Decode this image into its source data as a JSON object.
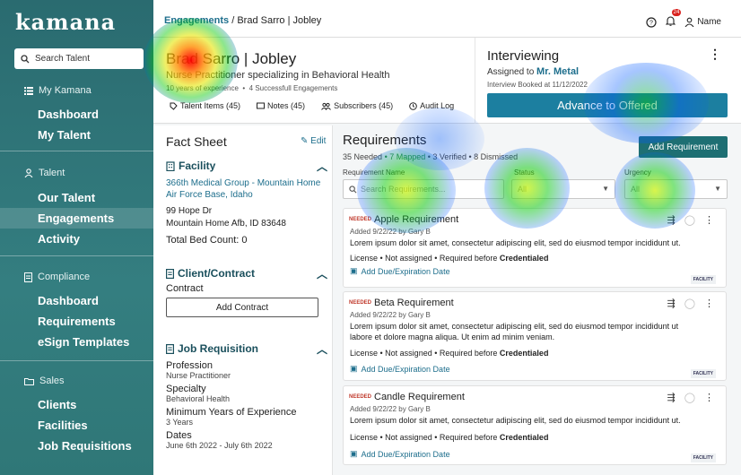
{
  "sidebar": {
    "logo": "kamana",
    "search_label": "Search Talent",
    "sections": [
      {
        "title": "My Kamana",
        "items": [
          "Dashboard",
          "My Talent"
        ]
      },
      {
        "title": "Talent",
        "items": [
          "Our Talent",
          "Engagements",
          "Activity"
        ]
      },
      {
        "title": "Compliance",
        "items": [
          "Dashboard",
          "Requirements",
          "eSign Templates"
        ]
      },
      {
        "title": "Sales",
        "items": [
          "Clients",
          "Facilities",
          "Job Requisitions"
        ]
      }
    ]
  },
  "topbar": {
    "breadcrumb_root": "Engagements",
    "breadcrumb_sep": "/",
    "breadcrumb_current": "Brad Sarro | Jobley",
    "notification_count": "24",
    "user_label": "Name"
  },
  "header": {
    "name": "Brad Sarro | Jobley",
    "subtitle": "Nurse Practitioner specializing in Behavioral Health",
    "experience": "10 years of experience",
    "engagements": "4 Successfull Engagements",
    "tabs": [
      "Talent Items (45)",
      "Notes (45)",
      "Subscribers (45)",
      "Audit Log"
    ],
    "status": "Interviewing",
    "assigned_prefix": "Assigned to",
    "assigned_name": "Mr. Metal",
    "booked": "Interview Booked at 11/12/2022",
    "advance_button": "Advance to Offered"
  },
  "fact_sheet": {
    "title": "Fact Sheet",
    "edit": "Edit",
    "facility": {
      "title": "Facility",
      "link": "366th Medical Group - Mountain Home Air Force Base, Idaho",
      "address1": "99 Hope Dr",
      "address2": "Mountain Home Afb, ID 83648",
      "bed_count": "Total Bed Count: 0"
    },
    "contract": {
      "title": "Client/Contract",
      "label": "Contract",
      "button": "Add Contract"
    },
    "job": {
      "title": "Job Requisition",
      "fields": [
        {
          "label": "Profession",
          "value": "Nurse Practitioner"
        },
        {
          "label": "Specialty",
          "value": "Behavioral Health"
        },
        {
          "label": "Minimum Years of Experience",
          "value": "3 Years"
        },
        {
          "label": "Dates",
          "value": "June 6th 2022 - July 6th 2022"
        }
      ]
    }
  },
  "requirements": {
    "title": "Requirements",
    "needed": "35 Needed",
    "mapped": "7 Mapped",
    "verified": "3 Verified",
    "dismissed": "8 Dismissed",
    "add_button": "Add Requirement",
    "filters": {
      "name_label": "Requirement Name",
      "name_placeholder": "Search Requirements...",
      "status_label": "Status",
      "status_value": "All",
      "urgency_label": "Urgency",
      "urgency_value": "All"
    },
    "cards": [
      {
        "badge": "NEEDED",
        "title": "Apple Requirement",
        "added": "Added 9/22/22 by Gary B",
        "desc": "Lorem ipsum dolor sit amet, consectetur adipiscing elit, sed do eiusmod tempor incididunt ut.",
        "license": "License • Not assigned • Required before",
        "license_bold": "Credentialed",
        "due": "Add Due/Expiration Date",
        "tag": "FACILITY"
      },
      {
        "badge": "NEEDED",
        "title": "Beta Requirement",
        "added": "Added 9/22/22 by Gary B",
        "desc": "Lorem ipsum dolor sit amet, consectetur adipiscing elit, sed do eiusmod tempor incididunt ut labore et dolore magna aliqua. Ut enim ad minim veniam.",
        "license": "License • Not assigned • Required before",
        "license_bold": "Credentialed",
        "due": "Add Due/Expiration Date",
        "tag": "FACILITY"
      },
      {
        "badge": "NEEDED",
        "title": "Candle Requirement",
        "added": "Added 9/22/22 by Gary B",
        "desc": "Lorem ipsum dolor sit amet, consectetur adipiscing elit, sed do eiusmod tempor incididunt ut.",
        "license": "License • Not assigned • Required before",
        "license_bold": "Credentialed",
        "due": "Add Due/Expiration Date",
        "tag": "FACILITY"
      }
    ]
  }
}
